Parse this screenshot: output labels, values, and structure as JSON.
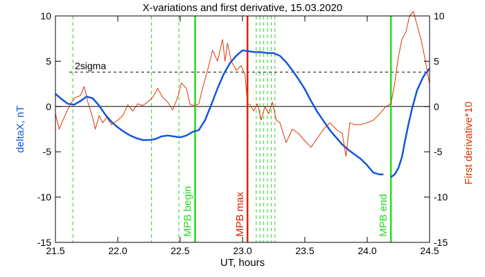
{
  "chart_data": {
    "type": "line",
    "title": "X-variations and first derivative, 15.03.2020",
    "xlabel": "UT, hours",
    "ylabel_left": "deltaX, nT",
    "ylabel_right": "First derivative*10",
    "xlim": [
      21.5,
      24.5
    ],
    "ylim": [
      -15,
      10
    ],
    "x_ticks": [
      "21.5",
      "22.0",
      "22.5",
      "23.0",
      "23.5",
      "24.0",
      "24.5"
    ],
    "y_ticks_left": [
      "10",
      "5",
      "0",
      "-5",
      "-10",
      "-15"
    ],
    "y_ticks_right": [
      "10",
      "5",
      "0",
      "-5",
      "-10",
      "-15"
    ],
    "threshold": {
      "label": "2sigma",
      "y": 3.8
    },
    "zero_line": 0,
    "markers": [
      {
        "x": 22.62,
        "label": "MPB begin",
        "color": "#22dd22"
      },
      {
        "x": 23.04,
        "label": "MPB max",
        "color": "#dd2200"
      },
      {
        "x": 24.19,
        "label": "MPB end",
        "color": "#22dd22"
      }
    ],
    "dashed_lines_x": [
      21.64,
      22.27,
      22.49,
      23.11,
      23.14,
      23.17,
      23.2,
      23.23,
      23.26
    ],
    "colors": {
      "delta": "#1155dd",
      "derivative": "#dd3300",
      "dashed": "#33cc33",
      "threshold": "#000000"
    },
    "series": [
      {
        "key": "delta",
        "x": [
          21.5,
          21.55,
          21.6,
          21.65,
          21.7,
          21.75,
          21.8,
          21.85,
          21.9,
          21.95,
          22.0,
          22.05,
          22.1,
          22.15,
          22.2,
          22.25,
          22.3,
          22.35,
          22.4,
          22.45,
          22.5,
          22.55,
          22.6,
          22.65,
          22.7,
          22.75,
          22.8,
          22.85,
          22.9,
          22.95,
          23.0,
          23.05,
          23.1,
          23.15,
          23.2,
          23.25,
          23.3,
          23.35,
          23.4,
          23.45,
          23.5,
          23.55,
          23.6,
          23.65,
          23.7,
          23.75,
          23.8,
          23.85,
          23.9,
          23.95,
          24.0,
          24.05,
          24.1,
          24.13
        ],
        "y": [
          1.4,
          0.8,
          0.3,
          0.2,
          0.6,
          1.1,
          0.9,
          0.1,
          -0.9,
          -1.7,
          -2.3,
          -2.8,
          -3.2,
          -3.5,
          -3.7,
          -3.7,
          -3.6,
          -3.3,
          -3.2,
          -3.3,
          -3.4,
          -3.2,
          -2.8,
          -2.6,
          -1.5,
          0.2,
          2.0,
          3.6,
          4.8,
          5.6,
          6.2,
          6.1,
          6.0,
          6.0,
          5.9,
          5.9,
          5.6,
          4.9,
          4.0,
          3.0,
          1.9,
          0.6,
          -0.6,
          -1.6,
          -2.6,
          -3.4,
          -4.2,
          -4.8,
          -5.3,
          -5.8,
          -6.5,
          -7.3,
          -7.5,
          -7.5
        ]
      },
      {
        "key": "delta_recovery",
        "x": [
          24.19,
          24.22,
          24.25,
          24.28,
          24.3,
          24.33,
          24.36,
          24.4,
          24.45,
          24.5
        ],
        "y": [
          -7.8,
          -7.5,
          -6.8,
          -5.5,
          -4.0,
          -2.0,
          -0.2,
          1.8,
          3.3,
          4.2
        ]
      },
      {
        "key": "derivative",
        "x": [
          21.5,
          21.53,
          21.56,
          21.6,
          21.63,
          21.66,
          21.7,
          21.73,
          21.76,
          21.79,
          21.82,
          21.85,
          21.88,
          21.91,
          21.95,
          22.0,
          22.04,
          22.08,
          22.12,
          22.16,
          22.2,
          22.24,
          22.28,
          22.32,
          22.36,
          22.4,
          22.44,
          22.48,
          22.51,
          22.55,
          22.58,
          22.62,
          22.65,
          22.68,
          22.72,
          22.76,
          22.8,
          22.84,
          22.86,
          22.88,
          22.91,
          22.95,
          22.99,
          23.02,
          23.04,
          23.06,
          23.09,
          23.12,
          23.15,
          23.18,
          23.21,
          23.24,
          23.27,
          23.3,
          23.35,
          23.4,
          23.45,
          23.5,
          23.55,
          23.6,
          23.65,
          23.7,
          23.75,
          23.8,
          23.83,
          23.86,
          23.9,
          23.95,
          24.0,
          24.05,
          24.1,
          24.15,
          24.19,
          24.22,
          24.25,
          24.28,
          24.31,
          24.34,
          24.37,
          24.4,
          24.43,
          24.46,
          24.5
        ],
        "y": [
          -0.8,
          -2.5,
          -1.5,
          -0.3,
          0.5,
          1.0,
          1.2,
          2.2,
          0.5,
          -0.8,
          -2.5,
          -1.0,
          -1.8,
          -1.2,
          -2.0,
          -1.5,
          -1.0,
          0.2,
          -0.5,
          0.3,
          0.1,
          0.5,
          1.0,
          2.0,
          1.0,
          0.5,
          -0.4,
          1.0,
          2.6,
          2.0,
          0.2,
          0.1,
          0.3,
          2.0,
          4.0,
          6.2,
          5.0,
          7.4,
          5.0,
          7.0,
          5.0,
          4.0,
          4.5,
          3.5,
          0.3,
          0.2,
          -0.5,
          0.3,
          -1.5,
          0.0,
          -0.8,
          0.5,
          -1.5,
          -1.8,
          -4.0,
          -2.5,
          -3.0,
          -3.8,
          -4.5,
          -3.5,
          -2.5,
          -1.8,
          -2.5,
          -3.0,
          -5.5,
          -1.8,
          -2.0,
          -2.0,
          -1.8,
          -1.5,
          -0.8,
          0.0,
          0.3,
          2.5,
          5.5,
          7.5,
          8.2,
          10.0,
          10.5,
          9.0,
          7.5,
          5.5,
          2.5
        ]
      }
    ]
  }
}
